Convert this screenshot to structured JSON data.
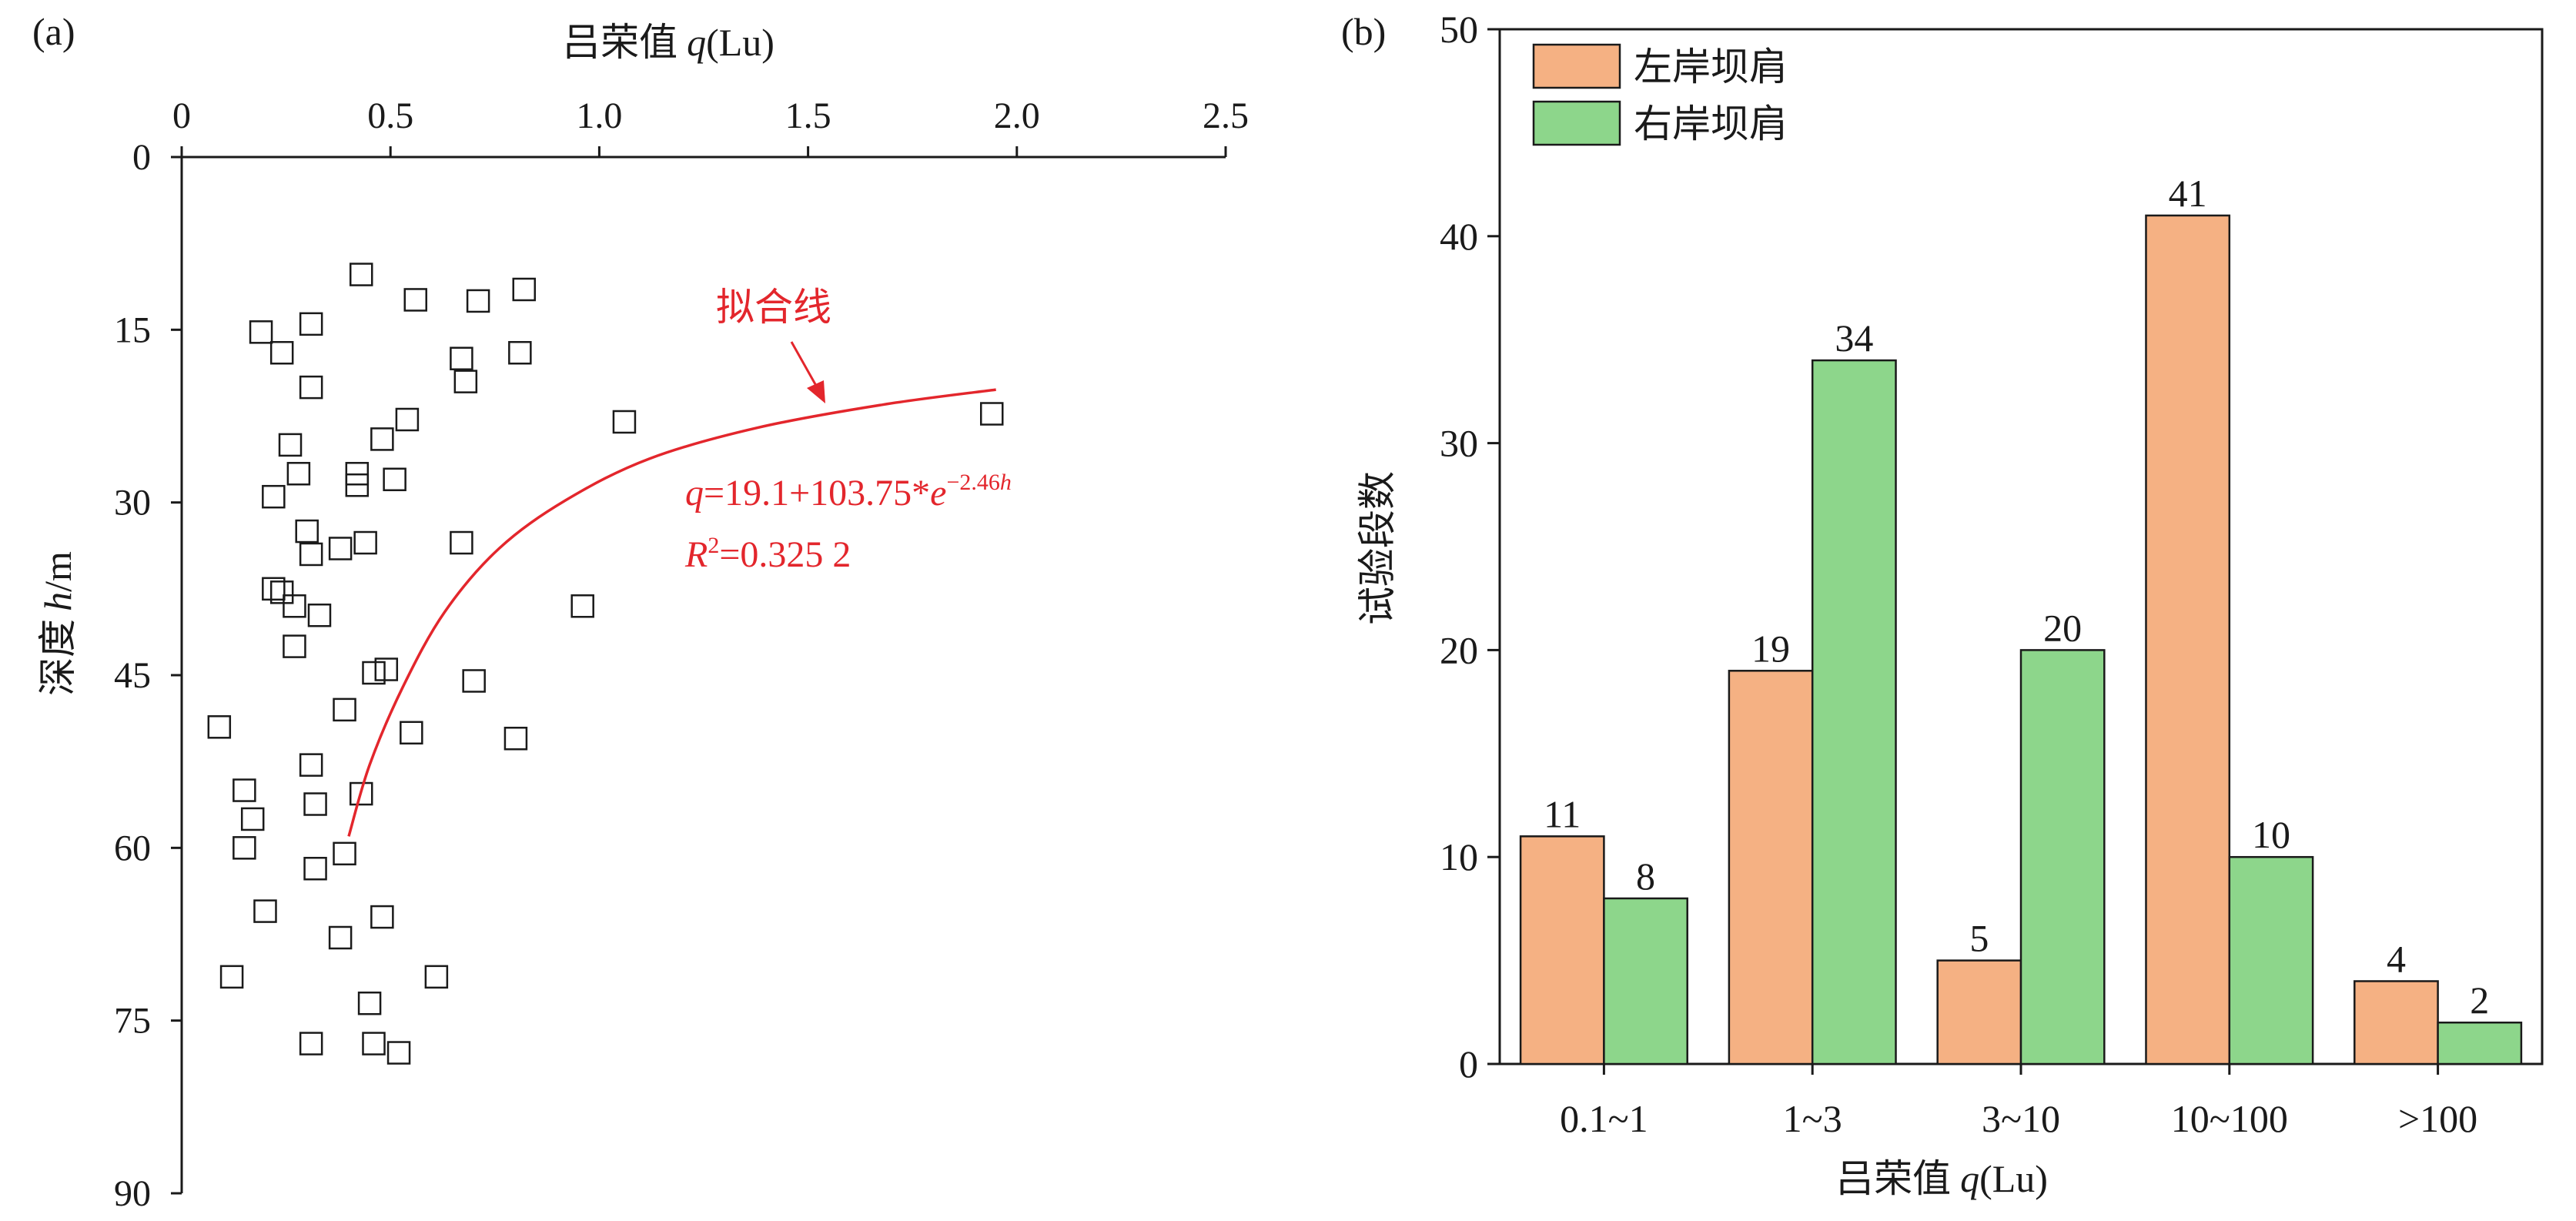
{
  "panels": {
    "a": {
      "label": "(a)"
    },
    "b": {
      "label": "(b)"
    }
  },
  "chart_data": [
    {
      "type": "scatter",
      "panel": "(a)",
      "xlabel_cn": "吕荣值",
      "xlabel_var": "q",
      "xlabel_unit": "(Lu)",
      "ylabel_cn": "深度",
      "ylabel_var": "h",
      "ylabel_unit": "/m",
      "xlim": [
        0,
        2.5
      ],
      "ylim": [
        0,
        90
      ],
      "y_inverted": true,
      "x_axis_position": "top",
      "xticks": [
        "0",
        "0.5",
        "1.0",
        "1.5",
        "2.0",
        "2.5"
      ],
      "xtick_values": [
        0,
        0.5,
        1.0,
        1.5,
        2.0,
        2.5
      ],
      "yticks": [
        "0",
        "15",
        "30",
        "45",
        "60",
        "75",
        "90"
      ],
      "ytick_values": [
        0,
        15,
        30,
        45,
        60,
        75,
        90
      ],
      "marker": "open-square",
      "points": [
        [
          0.43,
          10.2
        ],
        [
          0.56,
          12.4
        ],
        [
          0.71,
          12.5
        ],
        [
          0.82,
          11.5
        ],
        [
          0.19,
          15.2
        ],
        [
          0.31,
          14.5
        ],
        [
          0.24,
          17.0
        ],
        [
          0.67,
          17.5
        ],
        [
          0.81,
          17.0
        ],
        [
          0.31,
          20.0
        ],
        [
          0.68,
          19.5
        ],
        [
          0.54,
          22.8
        ],
        [
          0.48,
          24.5
        ],
        [
          0.26,
          25.0
        ],
        [
          1.06,
          23.0
        ],
        [
          1.94,
          22.3
        ],
        [
          0.28,
          27.5
        ],
        [
          0.42,
          27.5
        ],
        [
          0.42,
          28.5
        ],
        [
          0.51,
          28.0
        ],
        [
          0.22,
          29.5
        ],
        [
          0.3,
          32.5
        ],
        [
          0.44,
          33.5
        ],
        [
          0.67,
          33.5
        ],
        [
          0.38,
          34.0
        ],
        [
          0.31,
          34.5
        ],
        [
          0.22,
          37.5
        ],
        [
          0.24,
          37.8
        ],
        [
          0.27,
          39.0
        ],
        [
          0.33,
          39.8
        ],
        [
          0.96,
          39.0
        ],
        [
          0.27,
          42.5
        ],
        [
          0.46,
          44.8
        ],
        [
          0.49,
          44.5
        ],
        [
          0.7,
          45.5
        ],
        [
          0.39,
          48.0
        ],
        [
          0.09,
          49.5
        ],
        [
          0.55,
          50.0
        ],
        [
          0.8,
          50.5
        ],
        [
          0.31,
          52.8
        ],
        [
          0.15,
          55.0
        ],
        [
          0.43,
          55.3
        ],
        [
          0.32,
          56.2
        ],
        [
          0.17,
          57.5
        ],
        [
          0.15,
          60.0
        ],
        [
          0.39,
          60.5
        ],
        [
          0.32,
          61.8
        ],
        [
          0.2,
          65.5
        ],
        [
          0.48,
          66.0
        ],
        [
          0.38,
          67.8
        ],
        [
          0.12,
          71.2
        ],
        [
          0.61,
          71.2
        ],
        [
          0.45,
          73.5
        ],
        [
          0.31,
          77.0
        ],
        [
          0.46,
          77.0
        ],
        [
          0.52,
          77.8
        ]
      ],
      "fit_curve": {
        "color": "#e3262c",
        "points": [
          [
            0.4,
            59.0
          ],
          [
            0.45,
            52.8
          ],
          [
            0.53,
            46.0
          ],
          [
            0.63,
            39.5
          ],
          [
            0.76,
            34.0
          ],
          [
            0.92,
            29.8
          ],
          [
            1.12,
            26.2
          ],
          [
            1.38,
            23.5
          ],
          [
            1.68,
            21.5
          ],
          [
            1.95,
            20.2
          ]
        ],
        "label": "拟合线",
        "equation_q": "q",
        "equation_body": "=19.1+103.75*",
        "equation_e": "e",
        "equation_exp": "−2.46",
        "equation_h": "h",
        "r2_r": "R",
        "r2_sup": "2",
        "r2_value": "=0.325 2"
      }
    },
    {
      "type": "bar",
      "panel": "(b)",
      "categories": [
        "0.1~1",
        "1~3",
        "3~10",
        "10~100",
        ">100"
      ],
      "series": [
        {
          "name": "左岸坝肩",
          "values": [
            11,
            19,
            5,
            41,
            4
          ],
          "color": "#f5b183"
        },
        {
          "name": "右岸坝肩",
          "values": [
            8,
            34,
            20,
            10,
            2
          ],
          "color": "#8dd68b"
        }
      ],
      "xlabel_cn": "吕荣值",
      "xlabel_var": "q",
      "xlabel_unit": "(Lu)",
      "ylabel": "试验段数",
      "ylim": [
        0,
        50
      ],
      "yticks": [
        "0",
        "10",
        "20",
        "30",
        "40",
        "50"
      ],
      "ytick_values": [
        0,
        10,
        20,
        30,
        40,
        50
      ],
      "legend_position": "top-left",
      "data_labels": true
    }
  ]
}
